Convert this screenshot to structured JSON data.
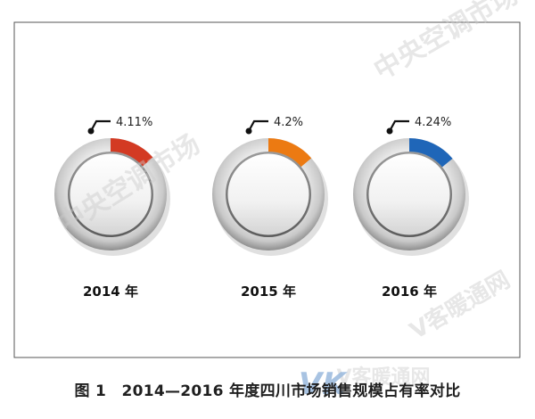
{
  "caption": "图 1　2014—2016 年度四川市场销售规模占有率对比",
  "watermarks": [
    "中央空调市场",
    "中央空调市场",
    "V客暖通网",
    "V客暖通网"
  ],
  "logo_text": "VK",
  "chart_data": {
    "type": "pie",
    "title": "",
    "max_value": 100,
    "unit": "%",
    "items": [
      {
        "category": "2014 年",
        "value": 4.11,
        "label": "4.11%",
        "color": "#d33a23"
      },
      {
        "category": "2015 年",
        "value": 4.2,
        "label": "4.2%",
        "color": "#ec7a12"
      },
      {
        "category": "2016 年",
        "value": 4.24,
        "label": "4.24%",
        "color": "#1f66b8"
      }
    ]
  }
}
